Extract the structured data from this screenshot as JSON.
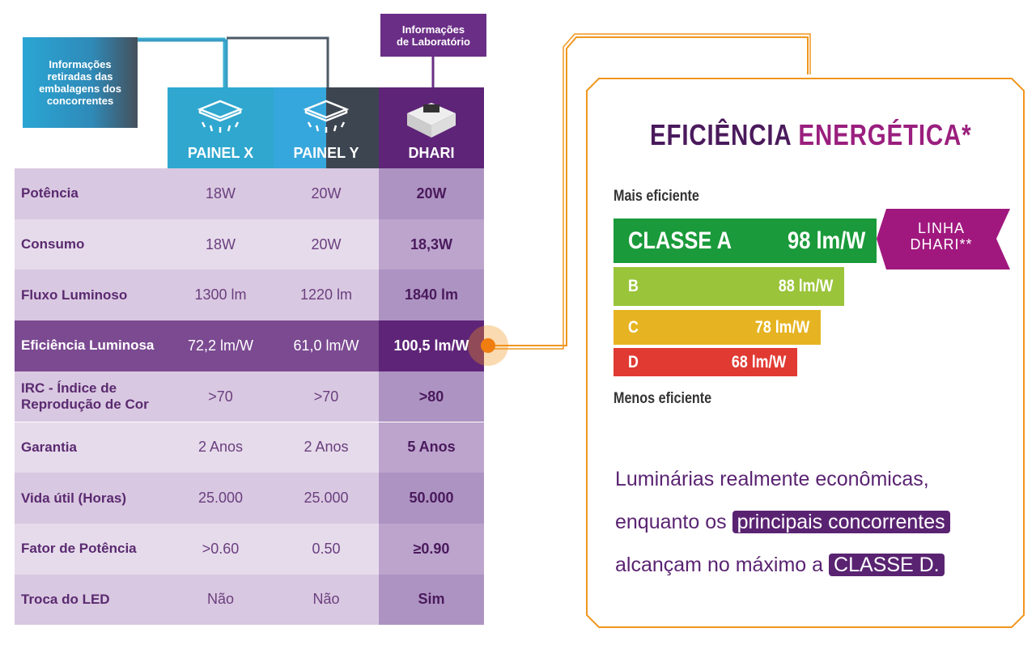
{
  "labels": {
    "source_competitors": "Informações retiradas das embalagens dos concorrentes",
    "source_lab": "Informações de Laboratório"
  },
  "table": {
    "columns": [
      "PAINEL X",
      "PAINEL Y",
      "DHARI"
    ],
    "rows": [
      [
        "Potência",
        "18W",
        "20W",
        "20W"
      ],
      [
        "Consumo",
        "18W",
        "20W",
        "18,3W"
      ],
      [
        "Fluxo Luminoso",
        "1300 lm",
        "1220 lm",
        "1840 lm"
      ],
      [
        "Eficiência Luminosa",
        "72,2 lm/W",
        "61,0 lm/W",
        "100,5 lm/W"
      ],
      [
        "IRC - Índice de Reprodução de Cor",
        ">70",
        ">70",
        ">80"
      ],
      [
        "Garantia",
        "2 Anos",
        "2 Anos",
        "5 Anos"
      ],
      [
        "Vida útil (Horas)",
        "25.000",
        "25.000",
        "50.000"
      ],
      [
        "Fator de Potência",
        ">0.60",
        "0.50",
        "≥0.90"
      ],
      [
        "Troca do LED",
        "Não",
        "Não",
        "Sim"
      ]
    ]
  },
  "efficiency": {
    "title_1": "EFICIÊNCIA",
    "title_2": "ENERGÉTICA*",
    "top_label": "Mais eficiente",
    "bottom_label": "Menos eficiente",
    "classes": [
      {
        "label": "CLASSE A",
        "value": "98 lm/W"
      },
      {
        "label": "B",
        "value": "88 lm/W"
      },
      {
        "label": "C",
        "value": "78 lm/W"
      },
      {
        "label": "D",
        "value": "68 lm/W"
      }
    ],
    "badge_1": "LINHA",
    "badge_2": "DHARI**"
  },
  "footer": {
    "text_1": "Luminárias realmente econômicas,",
    "text_2": "enquanto os",
    "highlight_1": "principais concorrentes",
    "text_3": "alcançam no máximo a",
    "highlight_2": "CLASSE D."
  }
}
